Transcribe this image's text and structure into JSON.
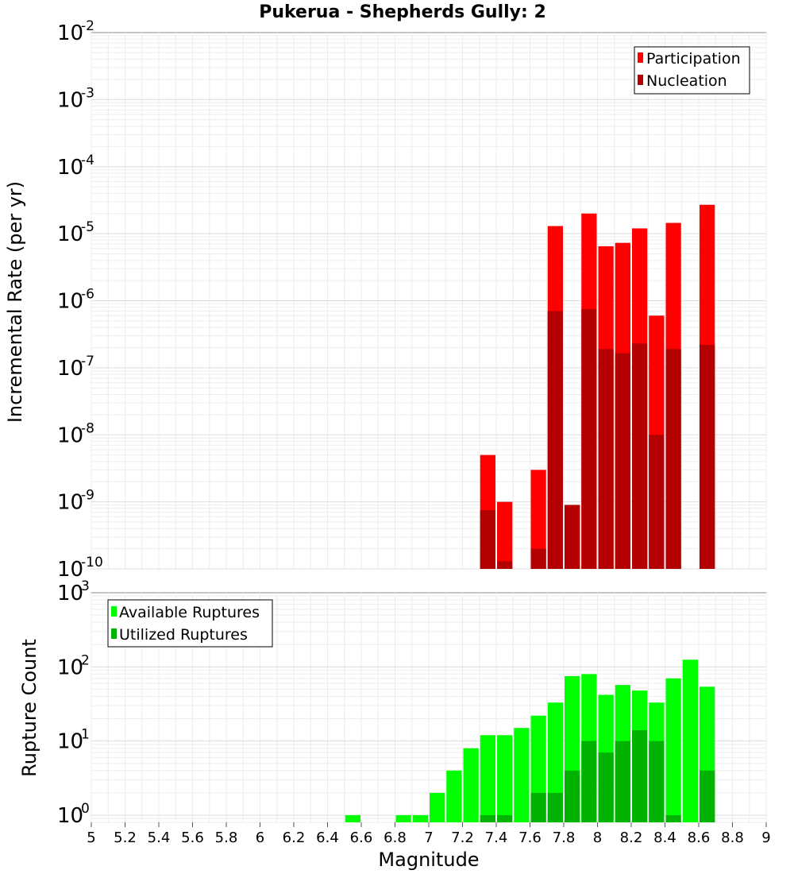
{
  "chart_data": [
    {
      "type": "bar",
      "title": "Pukerua - Shepherds Gully: 2",
      "xlabel": "",
      "ylabel": "Incremental Rate (per yr)",
      "yscale": "log",
      "xlim": [
        5,
        9
      ],
      "ylim": [
        1e-10,
        0.01
      ],
      "grid": true,
      "legend_position": "top-right",
      "bin_width": 0.1,
      "series": [
        {
          "name": "Participation",
          "color": "#ff0000",
          "x": [
            7.35,
            7.45,
            7.65,
            7.75,
            7.85,
            7.95,
            8.05,
            8.15,
            8.25,
            8.35,
            8.45,
            8.65
          ],
          "values": [
            5e-09,
            1e-09,
            3e-09,
            1.3e-05,
            9e-10,
            2e-05,
            6.5e-06,
            7.3e-06,
            1.2e-05,
            6e-07,
            1.45e-05,
            2.7e-05
          ]
        },
        {
          "name": "Nucleation",
          "color": "#b30000",
          "x": [
            7.35,
            7.45,
            7.65,
            7.75,
            7.85,
            7.95,
            8.05,
            8.15,
            8.25,
            8.35,
            8.45,
            8.65
          ],
          "values": [
            7.5e-10,
            1.3e-10,
            2e-10,
            7e-07,
            9e-10,
            7.5e-07,
            1.9e-07,
            1.65e-07,
            2.3e-07,
            1e-08,
            1.9e-07,
            2.2e-07
          ]
        }
      ]
    },
    {
      "type": "bar",
      "title": "",
      "xlabel": "Magnitude",
      "ylabel": "Rupture Count",
      "yscale": "log",
      "xlim": [
        5,
        9
      ],
      "ylim": [
        0.8,
        1000
      ],
      "grid": true,
      "legend_position": "top-left",
      "bin_width": 0.1,
      "series": [
        {
          "name": "Available Ruptures",
          "color": "#00ff00",
          "x": [
            6.55,
            6.85,
            6.95,
            7.05,
            7.15,
            7.25,
            7.35,
            7.45,
            7.55,
            7.65,
            7.75,
            7.85,
            7.95,
            8.05,
            8.15,
            8.25,
            8.35,
            8.45,
            8.55,
            8.65
          ],
          "values": [
            1,
            1,
            1,
            2,
            4,
            8,
            12,
            12,
            15,
            22,
            33,
            75,
            80,
            42,
            57,
            48,
            33,
            70,
            125,
            54
          ]
        },
        {
          "name": "Utilized Ruptures",
          "color": "#00b300",
          "x": [
            7.35,
            7.45,
            7.65,
            7.75,
            7.85,
            7.95,
            8.05,
            8.15,
            8.25,
            8.35,
            8.45,
            8.65
          ],
          "values": [
            1,
            1,
            2,
            2,
            4,
            10,
            7,
            10,
            14,
            10,
            1,
            4
          ]
        }
      ]
    }
  ],
  "axis_ticks": {
    "x": [
      "5",
      "5.2",
      "5.4",
      "5.6",
      "5.8",
      "6",
      "6.2",
      "6.4",
      "6.6",
      "6.8",
      "7",
      "7.2",
      "7.4",
      "7.6",
      "7.8",
      "8",
      "8.2",
      "8.4",
      "8.6",
      "8.8",
      "9"
    ],
    "top_y_exponents": [
      "-2",
      "-3",
      "-4",
      "-5",
      "-6",
      "-7",
      "-8",
      "-9",
      "-10"
    ],
    "bottom_y_exponents": [
      "3",
      "2",
      "1",
      "0"
    ]
  }
}
